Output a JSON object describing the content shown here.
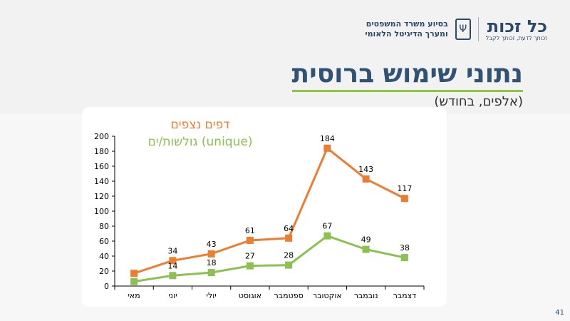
{
  "header": {
    "brand_name": "כל זכות",
    "brand_tagline": "זכותך לדעת, זכותך לקבל",
    "ministry_line1": "בסיוע משרד המשפטים",
    "ministry_line2": "ומערך הדיגיטל הלאומי",
    "emblem_icon": "menorah-emblem-icon"
  },
  "page": {
    "title": "נתוני שימוש ברוסית",
    "subtitle": "(אלפים, בחודש)",
    "page_number": "41"
  },
  "chart_data": {
    "type": "line",
    "categories": [
      "מאי",
      "יוני",
      "יולי",
      "אוגוסט",
      "ספטמבר",
      "אוקטובר",
      "נובמבר",
      "דצמבר"
    ],
    "series": [
      {
        "name": "דפים נצפים",
        "color": "#ed7d31",
        "values": [
          17,
          34,
          43,
          61,
          64,
          184,
          143,
          117
        ],
        "labels": [
          null,
          "34",
          "43",
          "61",
          "64",
          "184",
          "143",
          "117"
        ]
      },
      {
        "name": "גולשות/ים (unique)",
        "color": "#8cc152",
        "values": [
          6,
          14,
          18,
          27,
          28,
          67,
          49,
          38
        ],
        "labels": [
          null,
          "14",
          "18",
          "27",
          "28",
          "67",
          "49",
          "38"
        ]
      }
    ],
    "ylim": [
      0,
      200
    ],
    "yticks": [
      "0",
      "20",
      "40",
      "60",
      "80",
      "100",
      "120",
      "140",
      "160",
      "180",
      "200"
    ],
    "grid": false,
    "legend": "top-left"
  }
}
